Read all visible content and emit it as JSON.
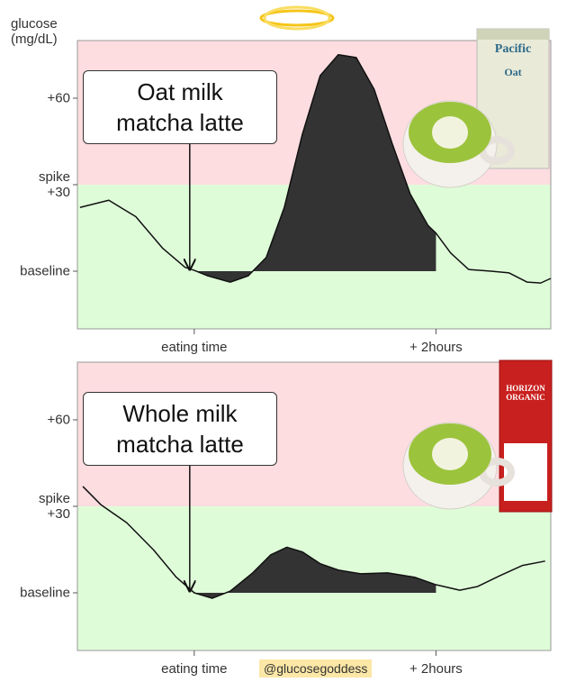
{
  "chart_data": [
    {
      "type": "line",
      "ylabel": "glucose (mg/dL)",
      "annotation": "Oat milk matcha latte",
      "product_labels": [
        "Pacific",
        "Oat"
      ],
      "x": [
        -56.7,
        -42.4,
        -29,
        -15.6,
        -4.5,
        0,
        6.7,
        17.9,
        26.8,
        35.7,
        44.7,
        53.6,
        62.5,
        71.5,
        80.4,
        89.3,
        98.3,
        107.2,
        116.1,
        120,
        127.3,
        136.2,
        147.4,
        156.3,
        165.3,
        172,
        177
      ],
      "series": [
        {
          "color": "#111111",
          "values": [
            22.1,
            24.6,
            18.9,
            7.9,
            1.3,
            0.3,
            -1.6,
            -3.8,
            -1.6,
            4.7,
            22.1,
            47.3,
            67.8,
            75.1,
            74.1,
            63.1,
            44.2,
            26.8,
            15.8,
            13.2,
            6.3,
            0.6,
            0,
            -0.6,
            -3.8,
            -4.1,
            -2.5
          ]
        }
      ],
      "xlim": [
        -58,
        177
      ],
      "xticks": [
        {
          "value": 0,
          "label": "eating time"
        },
        {
          "value": 120,
          "label": "+ 2hours"
        }
      ],
      "ylim": [
        -20,
        80
      ],
      "yticks": [
        {
          "value": 0,
          "label": "baseline"
        },
        {
          "value": 30,
          "label": "spike +30"
        },
        {
          "value": 60,
          "label": "+60"
        }
      ]
    },
    {
      "type": "line",
      "annotation": "Whole milk matcha latte",
      "product_labels": [
        "HORIZON",
        "ORGANIC"
      ],
      "x": [
        -55.3,
        -46.4,
        -33.5,
        -20.1,
        -8.9,
        0,
        8.9,
        17.9,
        29,
        38,
        46,
        53.6,
        62.5,
        71.5,
        82.6,
        96,
        109.4,
        120,
        131.8,
        140.7,
        151.9,
        163,
        174.2
      ],
      "series": [
        {
          "color": "#111111",
          "values": [
            36.9,
            30.6,
            24.3,
            14.8,
            5.4,
            0,
            -1.9,
            0.6,
            6.9,
            13.2,
            15.8,
            14.2,
            10.1,
            7.9,
            6.6,
            6.9,
            5.4,
            2.8,
            0.9,
            2.2,
            6,
            9.5,
            11
          ]
        }
      ],
      "xlim": [
        -58,
        177
      ],
      "xticks": [
        {
          "value": 0,
          "label": "eating time"
        },
        {
          "value": 120,
          "label": "+ 2hours"
        }
      ],
      "ylim": [
        -20,
        80
      ],
      "yticks": [
        {
          "value": 0,
          "label": "baseline"
        },
        {
          "value": 30,
          "label": "spike +30"
        },
        {
          "value": 60,
          "label": "+60"
        }
      ]
    }
  ],
  "credit": "@glucosegoddess"
}
